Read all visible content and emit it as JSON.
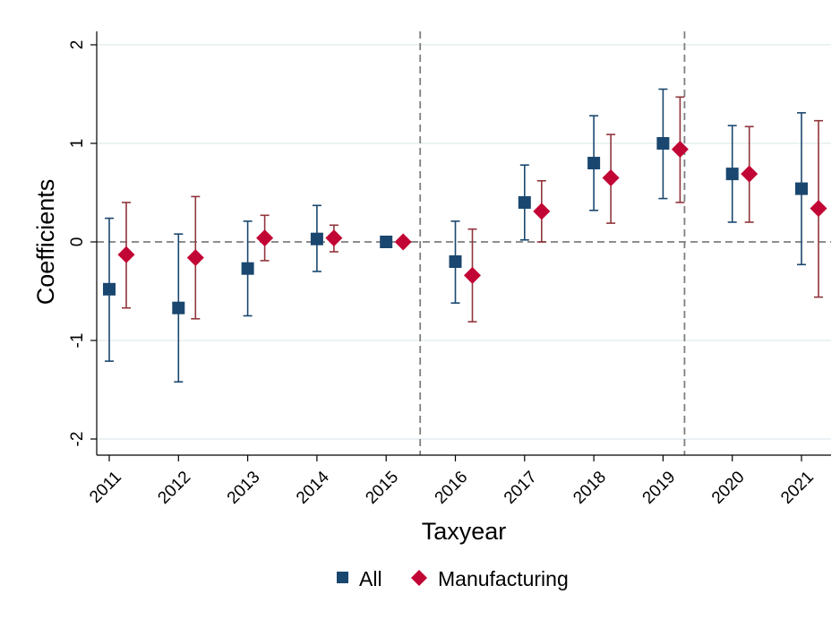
{
  "chart_data": {
    "type": "scatter",
    "title": "",
    "xlabel": "Taxyear",
    "ylabel": "Coefficients",
    "categories": [
      "2011",
      "2012",
      "2013",
      "2014",
      "2015",
      "2016",
      "2017",
      "2018",
      "2019",
      "2020",
      "2021"
    ],
    "ylim": [
      -2.15,
      2.15
    ],
    "yticks": [
      -2,
      -1,
      0,
      1,
      2
    ],
    "ytick_labels": [
      "-2",
      "-1",
      "0",
      "1",
      "2"
    ],
    "grid": true,
    "reference_lines": {
      "horizontal_y": 0,
      "vertical_after_categories": [
        "2015",
        "2019"
      ]
    },
    "legend_position": "bottom",
    "series": [
      {
        "name": "All",
        "marker": "square",
        "color": "#1a476f",
        "values": [
          -0.48,
          -0.67,
          -0.27,
          0.03,
          0.0,
          -0.2,
          0.4,
          0.8,
          1.0,
          0.69,
          0.54
        ],
        "ci_low": [
          -1.21,
          -1.42,
          -0.75,
          -0.3,
          0.0,
          -0.62,
          0.02,
          0.32,
          0.44,
          0.2,
          -0.23
        ],
        "ci_high": [
          0.24,
          0.08,
          0.21,
          0.37,
          0.0,
          0.21,
          0.78,
          1.28,
          1.55,
          1.18,
          1.31
        ]
      },
      {
        "name": "Manufacturing",
        "marker": "diamond",
        "color": "#c10534",
        "values": [
          -0.13,
          -0.16,
          0.04,
          0.04,
          0.0,
          -0.34,
          0.31,
          0.65,
          0.94,
          0.69,
          0.34
        ],
        "ci_low": [
          -0.67,
          -0.78,
          -0.19,
          -0.1,
          0.0,
          -0.81,
          0.0,
          0.19,
          0.4,
          0.2,
          -0.56
        ],
        "ci_high": [
          0.4,
          0.46,
          0.27,
          0.17,
          0.0,
          0.13,
          0.62,
          1.09,
          1.47,
          1.17,
          1.23
        ]
      }
    ]
  },
  "colors": {
    "grid": "#e6edf1",
    "axis": "#000000",
    "reference_line": "#7f7f7f",
    "all_ci": "#1a476f",
    "manufacturing_ci": "#90353b"
  }
}
